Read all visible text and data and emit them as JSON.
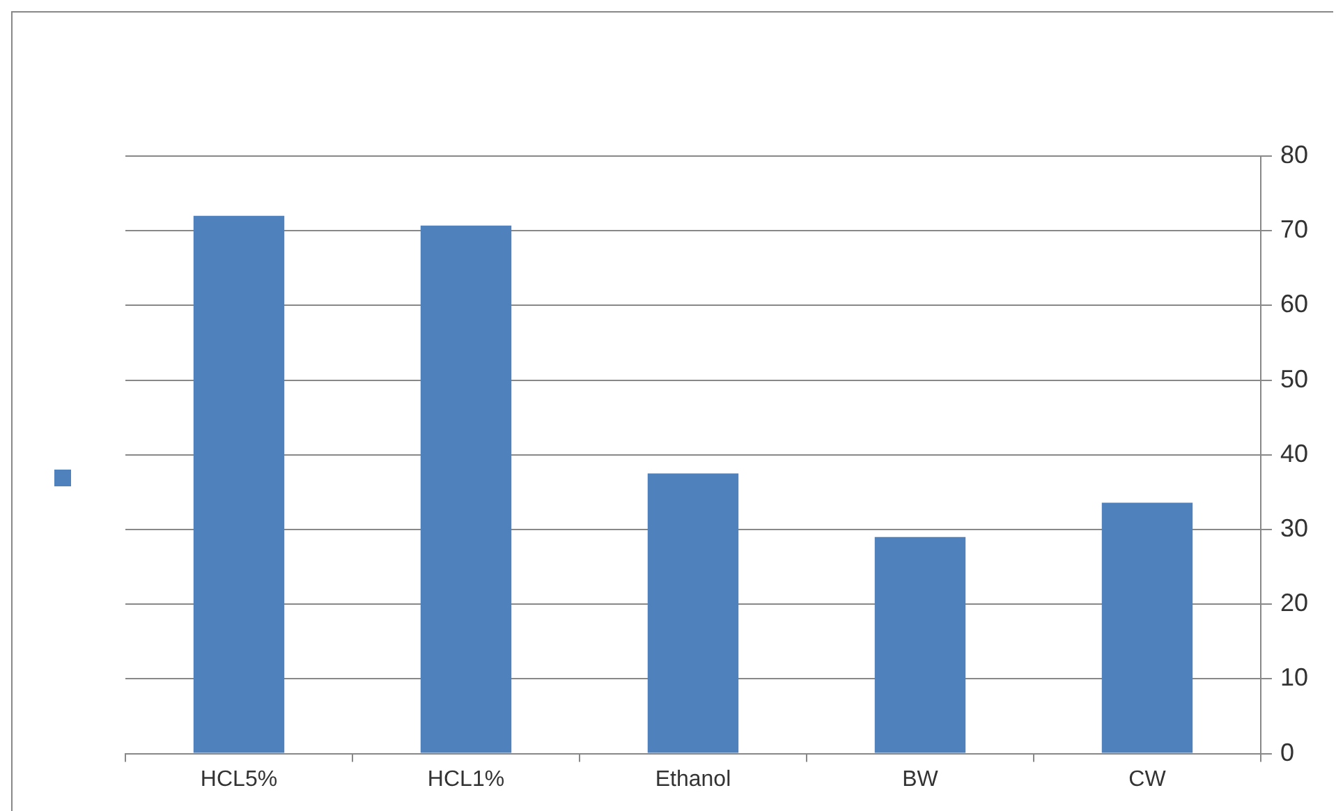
{
  "chart_data": {
    "type": "bar",
    "categories": [
      "HCL5%",
      "HCL1%",
      "Ethanol",
      "BW",
      "CW"
    ],
    "series": [
      {
        "color": "#4f81bd",
        "values": [
          72,
          70.7,
          37.5,
          29,
          33.6
        ]
      }
    ],
    "ylim": [
      0,
      80
    ],
    "yticks": [
      0,
      10,
      20,
      30,
      40,
      50,
      60,
      70,
      80
    ],
    "grid": "y"
  }
}
